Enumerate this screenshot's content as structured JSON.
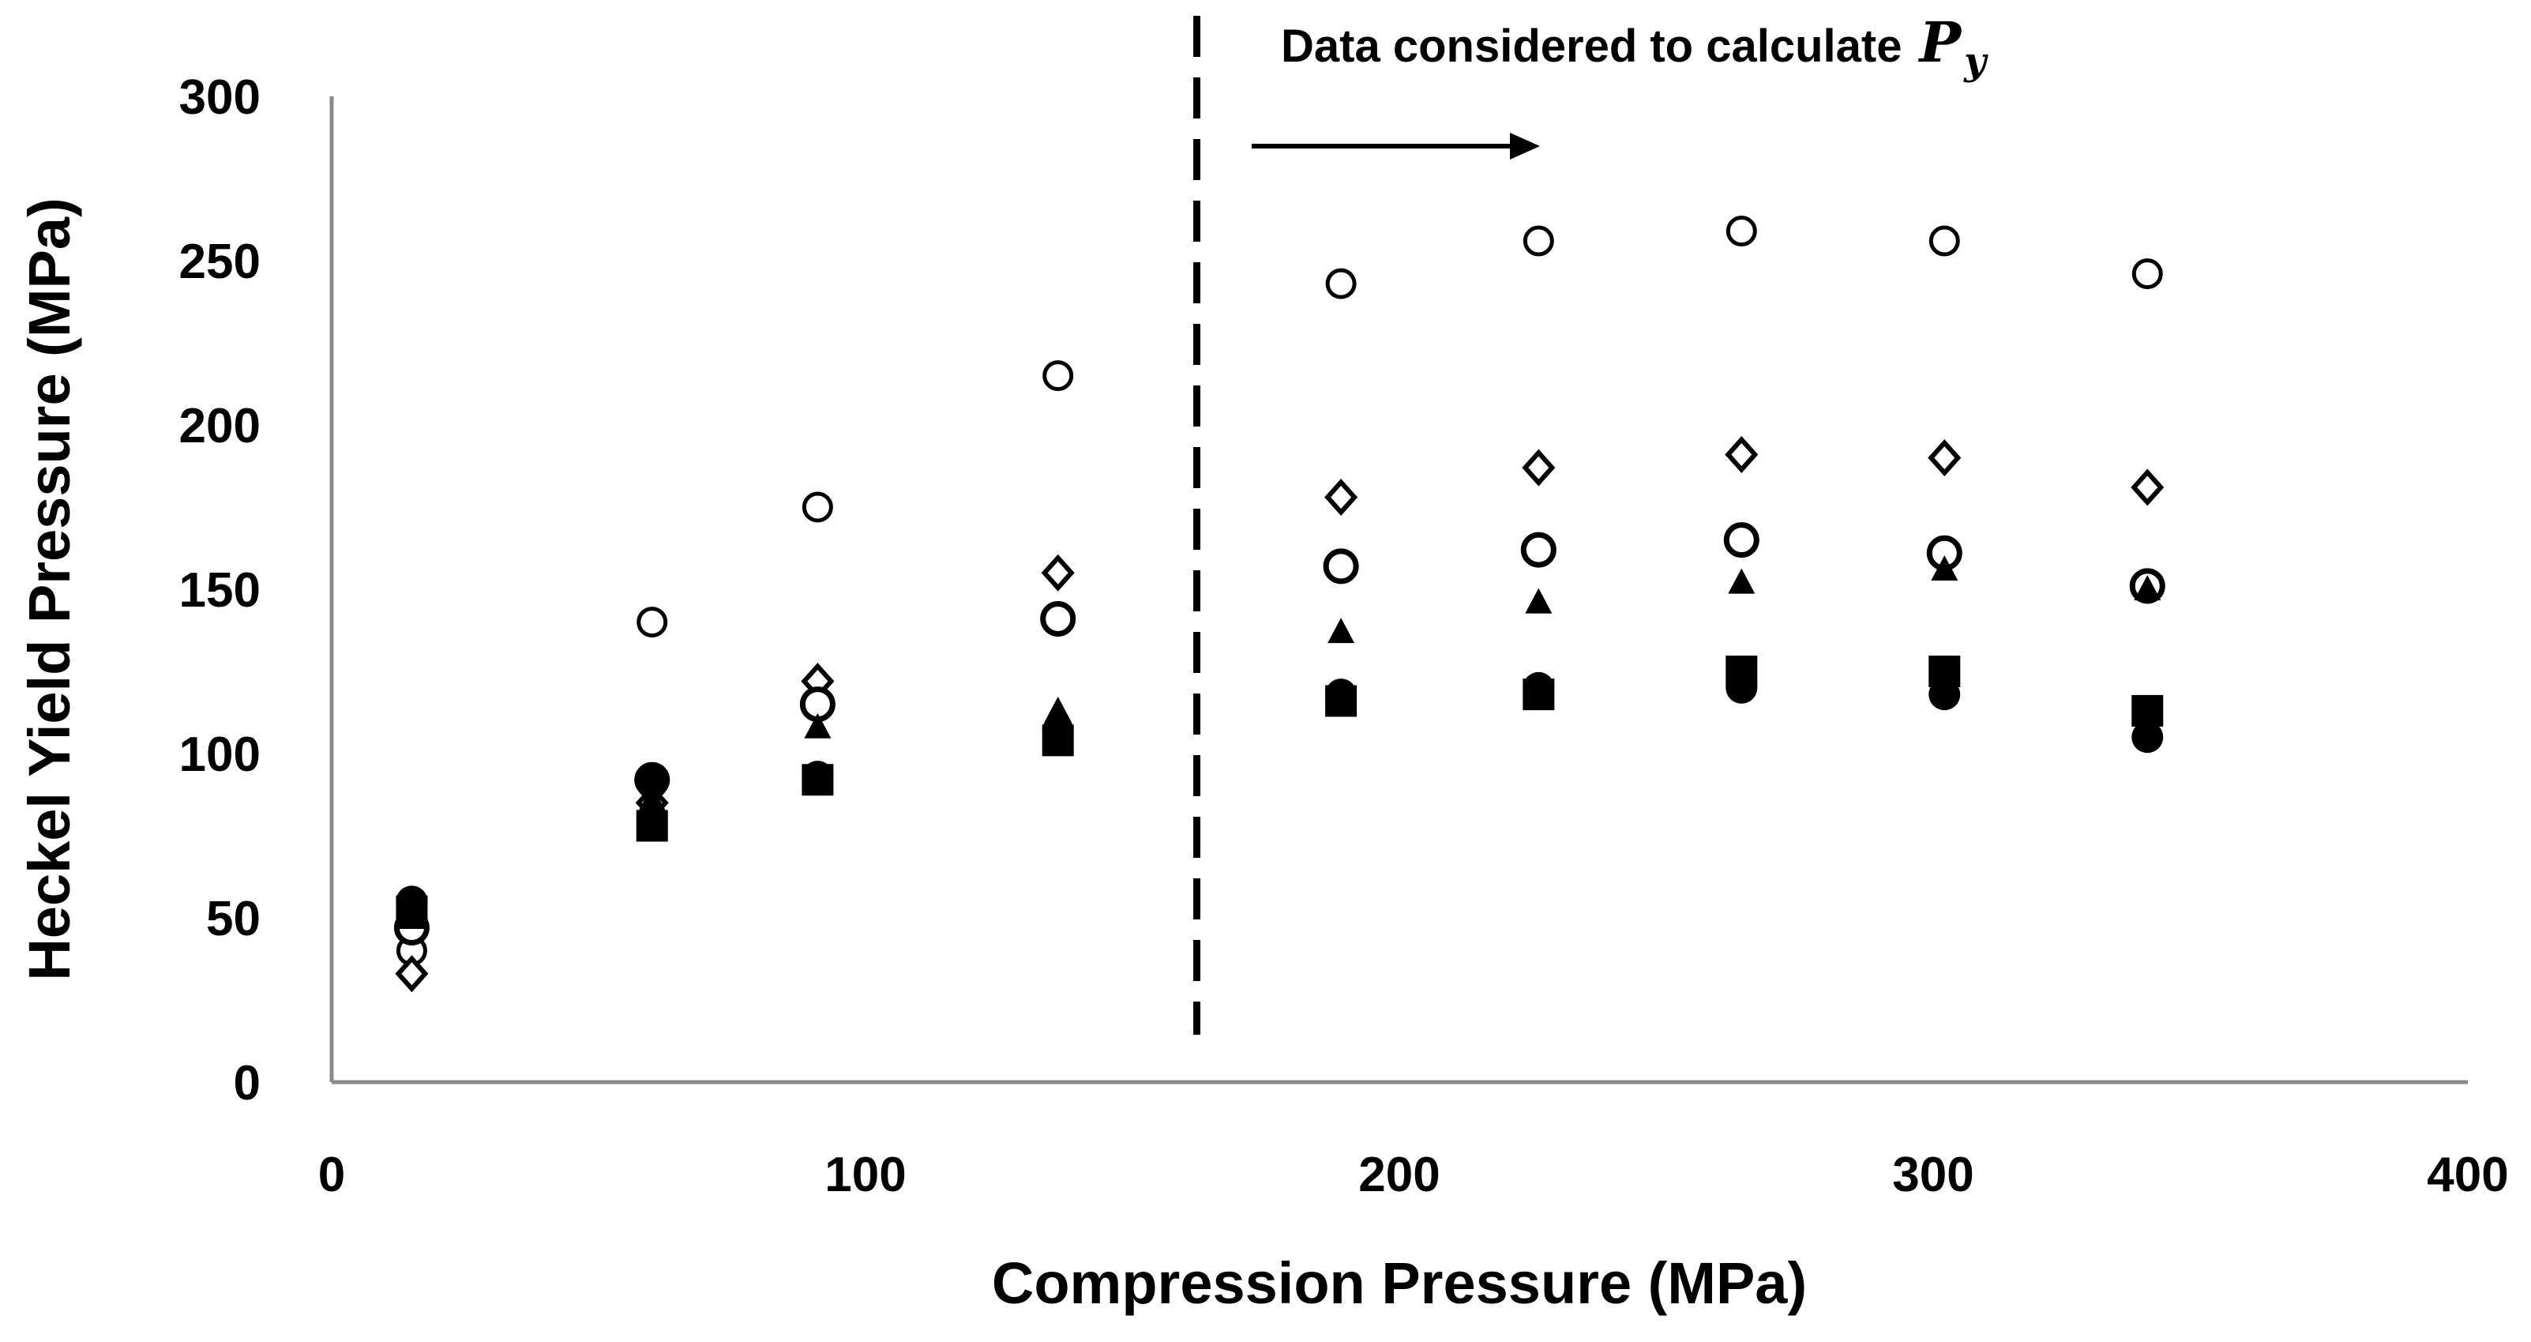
{
  "chart_data": {
    "type": "scatter",
    "title": "",
    "xlabel": "Compression Pressure (MPa)",
    "ylabel": "Heckel Yield Pressure (MPa)",
    "xlim": [
      0,
      400
    ],
    "ylim": [
      0,
      300
    ],
    "xticks": [
      "0",
      "100",
      "200",
      "300",
      "400"
    ],
    "yticks": [
      "0",
      "50",
      "100",
      "150",
      "200",
      "250",
      "300"
    ],
    "grid": false,
    "legend": "none",
    "annotation": {
      "text": "Data considered to calculate",
      "symbol": "P",
      "subscript": "y",
      "divider_x": 162
    },
    "x": [
      15,
      60,
      91,
      136,
      189,
      226,
      264,
      302,
      340
    ],
    "series": [
      {
        "name": "open-circle-large",
        "marker": "open-circle",
        "values": [
          40,
          140,
          175,
          215,
          243,
          256,
          259,
          256,
          246
        ]
      },
      {
        "name": "open-diamond",
        "marker": "open-diamond",
        "values": [
          33,
          85,
          122,
          155,
          178,
          187,
          191,
          190,
          181
        ]
      },
      {
        "name": "open-circle-bold",
        "marker": "open-circle-bold",
        "values": [
          47,
          92,
          115,
          141,
          157,
          162,
          165,
          161,
          151
        ]
      },
      {
        "name": "filled-triangle",
        "marker": "filled-triangle",
        "values": [
          50,
          86,
          108,
          113,
          137,
          146,
          152,
          156,
          150
        ]
      },
      {
        "name": "filled-circle",
        "marker": "filled-circle",
        "values": [
          55,
          91,
          93,
          107,
          118,
          120,
          120,
          118,
          105
        ]
      },
      {
        "name": "filled-square",
        "marker": "filled-square",
        "values": [
          52,
          78,
          92,
          104,
          116,
          118,
          125,
          125,
          113
        ]
      }
    ]
  }
}
